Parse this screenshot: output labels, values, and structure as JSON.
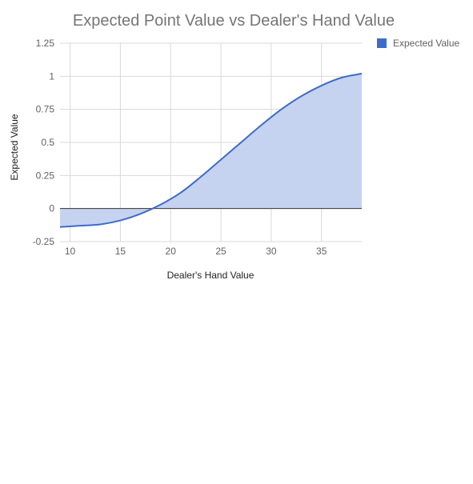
{
  "chart_data": {
    "type": "area",
    "title": "Expected Point Value vs Dealer's Hand Value",
    "xlabel": "Dealer's Hand Value",
    "ylabel": "Expected Value",
    "xlim": [
      9,
      39
    ],
    "ylim": [
      -0.25,
      1.25
    ],
    "x_ticks": [
      "10",
      "15",
      "20",
      "25",
      "30",
      "35"
    ],
    "y_ticks": [
      "1.25",
      "1",
      "0.75",
      "0.5",
      "0.25",
      "0",
      "-0.25"
    ],
    "grid": true,
    "legend_position": "right",
    "series": [
      {
        "name": "Expected Value",
        "color": "#3f6bc9",
        "fill_color": "#c5d3f0",
        "x": [
          9,
          11,
          13,
          15,
          17,
          19,
          21,
          23,
          25,
          27,
          29,
          31,
          33,
          35,
          37,
          39
        ],
        "y": [
          -0.14,
          -0.13,
          -0.12,
          -0.09,
          -0.04,
          0.03,
          0.12,
          0.24,
          0.37,
          0.5,
          0.63,
          0.75,
          0.85,
          0.93,
          0.99,
          1.02
        ]
      }
    ]
  }
}
